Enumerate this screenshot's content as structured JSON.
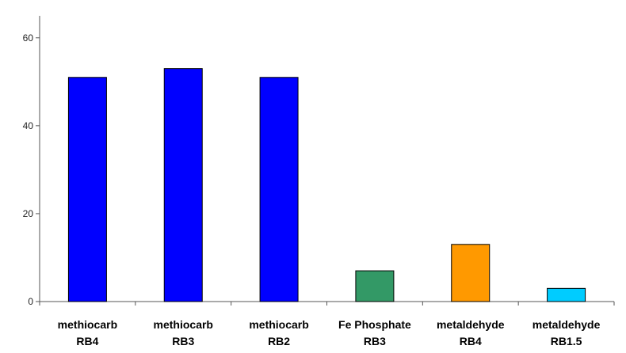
{
  "chart_data": {
    "type": "bar",
    "title": "",
    "xlabel": "",
    "ylabel": "",
    "ylim": [
      0,
      65
    ],
    "yticks": [
      0,
      20,
      40,
      60
    ],
    "grid": false,
    "legend": "none",
    "categories": [
      [
        "methiocarb",
        "RB4"
      ],
      [
        "methiocarb",
        "RB3"
      ],
      [
        "methiocarb",
        "RB2"
      ],
      [
        "Fe Phosphate",
        "RB3"
      ],
      [
        "metaldehyde",
        "RB4"
      ],
      [
        "metaldehyde",
        "RB1.5"
      ]
    ],
    "values": [
      51,
      53,
      51,
      7,
      13,
      3
    ],
    "colors": [
      "#0000ff",
      "#0000ff",
      "#0000ff",
      "#339966",
      "#ff9900",
      "#00ccff"
    ]
  }
}
